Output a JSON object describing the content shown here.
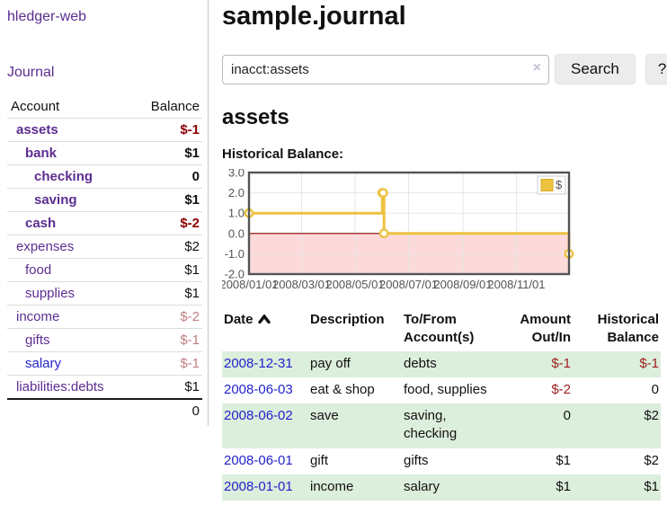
{
  "colors": {
    "accent_purple": "#5c2d91",
    "link_blue": "#2323cc",
    "negative_strong": "#8b0000",
    "negative_muted": "#c08080",
    "row_stripe_green": "#dceedc",
    "chart_line_gold": "#edc240",
    "chart_negative_fill": "#fcdada",
    "chart_zero_line": "#8b0000"
  },
  "sidebar": {
    "app_title": "hledger-web",
    "journal_link": "Journal",
    "accounts_table": {
      "headers": {
        "account": "Account",
        "balance": "Balance"
      },
      "rows": [
        {
          "name": "assets",
          "balance": "$-1",
          "depth": 0,
          "bold": true,
          "balance_style": "neg-strong"
        },
        {
          "name": "bank",
          "balance": "$1",
          "depth": 1,
          "bold": true,
          "balance_style": "strong"
        },
        {
          "name": "checking",
          "balance": "0",
          "depth": 2,
          "bold": true,
          "balance_style": "strong"
        },
        {
          "name": "saving",
          "balance": "$1",
          "depth": 2,
          "bold": true,
          "balance_style": "strong"
        },
        {
          "name": "cash",
          "balance": "$-2",
          "depth": 1,
          "bold": true,
          "balance_style": "neg-strong"
        },
        {
          "name": "expenses",
          "balance": "$2",
          "depth": 0,
          "bold": false,
          "balance_style": "normal"
        },
        {
          "name": "food",
          "balance": "$1",
          "depth": 1,
          "bold": false,
          "balance_style": "normal"
        },
        {
          "name": "supplies",
          "balance": "$1",
          "depth": 1,
          "bold": false,
          "balance_style": "normal"
        },
        {
          "name": "income",
          "balance": "$-2",
          "depth": 0,
          "bold": false,
          "balance_style": "neg-muted"
        },
        {
          "name": "gifts",
          "balance": "$-1",
          "depth": 1,
          "bold": false,
          "balance_style": "neg-muted"
        },
        {
          "name": "salary",
          "balance": "$-1",
          "depth": 1,
          "bold": false,
          "balance_style": "neg-muted",
          "link_style": "blue"
        },
        {
          "name": "liabilities:debts",
          "balance": "$1",
          "depth": 0,
          "bold": false,
          "balance_style": "normal"
        }
      ],
      "total": "0"
    }
  },
  "main": {
    "title": "sample.journal",
    "search": {
      "value": "inacct:assets",
      "clear_icon": "×",
      "search_button": "Search",
      "help_button": "?"
    },
    "account_heading": "assets",
    "chart_title": "Historical Balance:",
    "register": {
      "columns": [
        "Date",
        "Description",
        "To/From Account(s)",
        "Amount Out/In",
        "Historical Balance"
      ],
      "rows": [
        {
          "date": "2008-12-31",
          "description": "pay off",
          "accounts": "debts",
          "amount": "$-1",
          "balance": "$-1",
          "amount_negative": true,
          "balance_negative": true
        },
        {
          "date": "2008-06-03",
          "description": "eat & shop",
          "accounts": "food, supplies",
          "amount": "$-2",
          "balance": "0",
          "amount_negative": true,
          "balance_negative": false
        },
        {
          "date": "2008-06-02",
          "description": "save",
          "accounts": "saving, checking",
          "amount": "0",
          "balance": "$2",
          "amount_negative": false,
          "balance_negative": false
        },
        {
          "date": "2008-06-01",
          "description": "gift",
          "accounts": "gifts",
          "amount": "$1",
          "balance": "$2",
          "amount_negative": false,
          "balance_negative": false
        },
        {
          "date": "2008-01-01",
          "description": "income",
          "accounts": "salary",
          "amount": "$1",
          "balance": "$1",
          "amount_negative": false,
          "balance_negative": false
        }
      ]
    }
  },
  "chart_data": {
    "type": "line",
    "title": "Historical Balance:",
    "steps": true,
    "markers": true,
    "legend": {
      "label": "$",
      "position": "top-right"
    },
    "series": [
      {
        "name": "$",
        "points": [
          [
            "2008-01-01",
            1
          ],
          [
            "2008-06-01",
            2
          ],
          [
            "2008-06-02",
            2
          ],
          [
            "2008-06-03",
            0
          ],
          [
            "2008-12-31",
            -1
          ]
        ]
      }
    ],
    "x_range": [
      "2008-01-01",
      "2008-12-31"
    ],
    "ylim": [
      -2,
      3
    ],
    "yticks": [
      3.0,
      2.0,
      1.0,
      0.0,
      -1.0,
      -2.0
    ],
    "xticks": [
      "2008/01/01",
      "2008/03/01",
      "2008/05/01",
      "2008/07/01",
      "2008/09/01",
      "2008/11/01"
    ],
    "grid": true,
    "negative_region_shaded": true,
    "line_color": "#edc240",
    "marker_fill": "#ffffff",
    "negative_fill_color": "#fcdada",
    "zero_line_color": "#8b0000",
    "grid_color": "#e6e6e6",
    "border_color": "#545454",
    "tick_label_color": "#545454"
  }
}
